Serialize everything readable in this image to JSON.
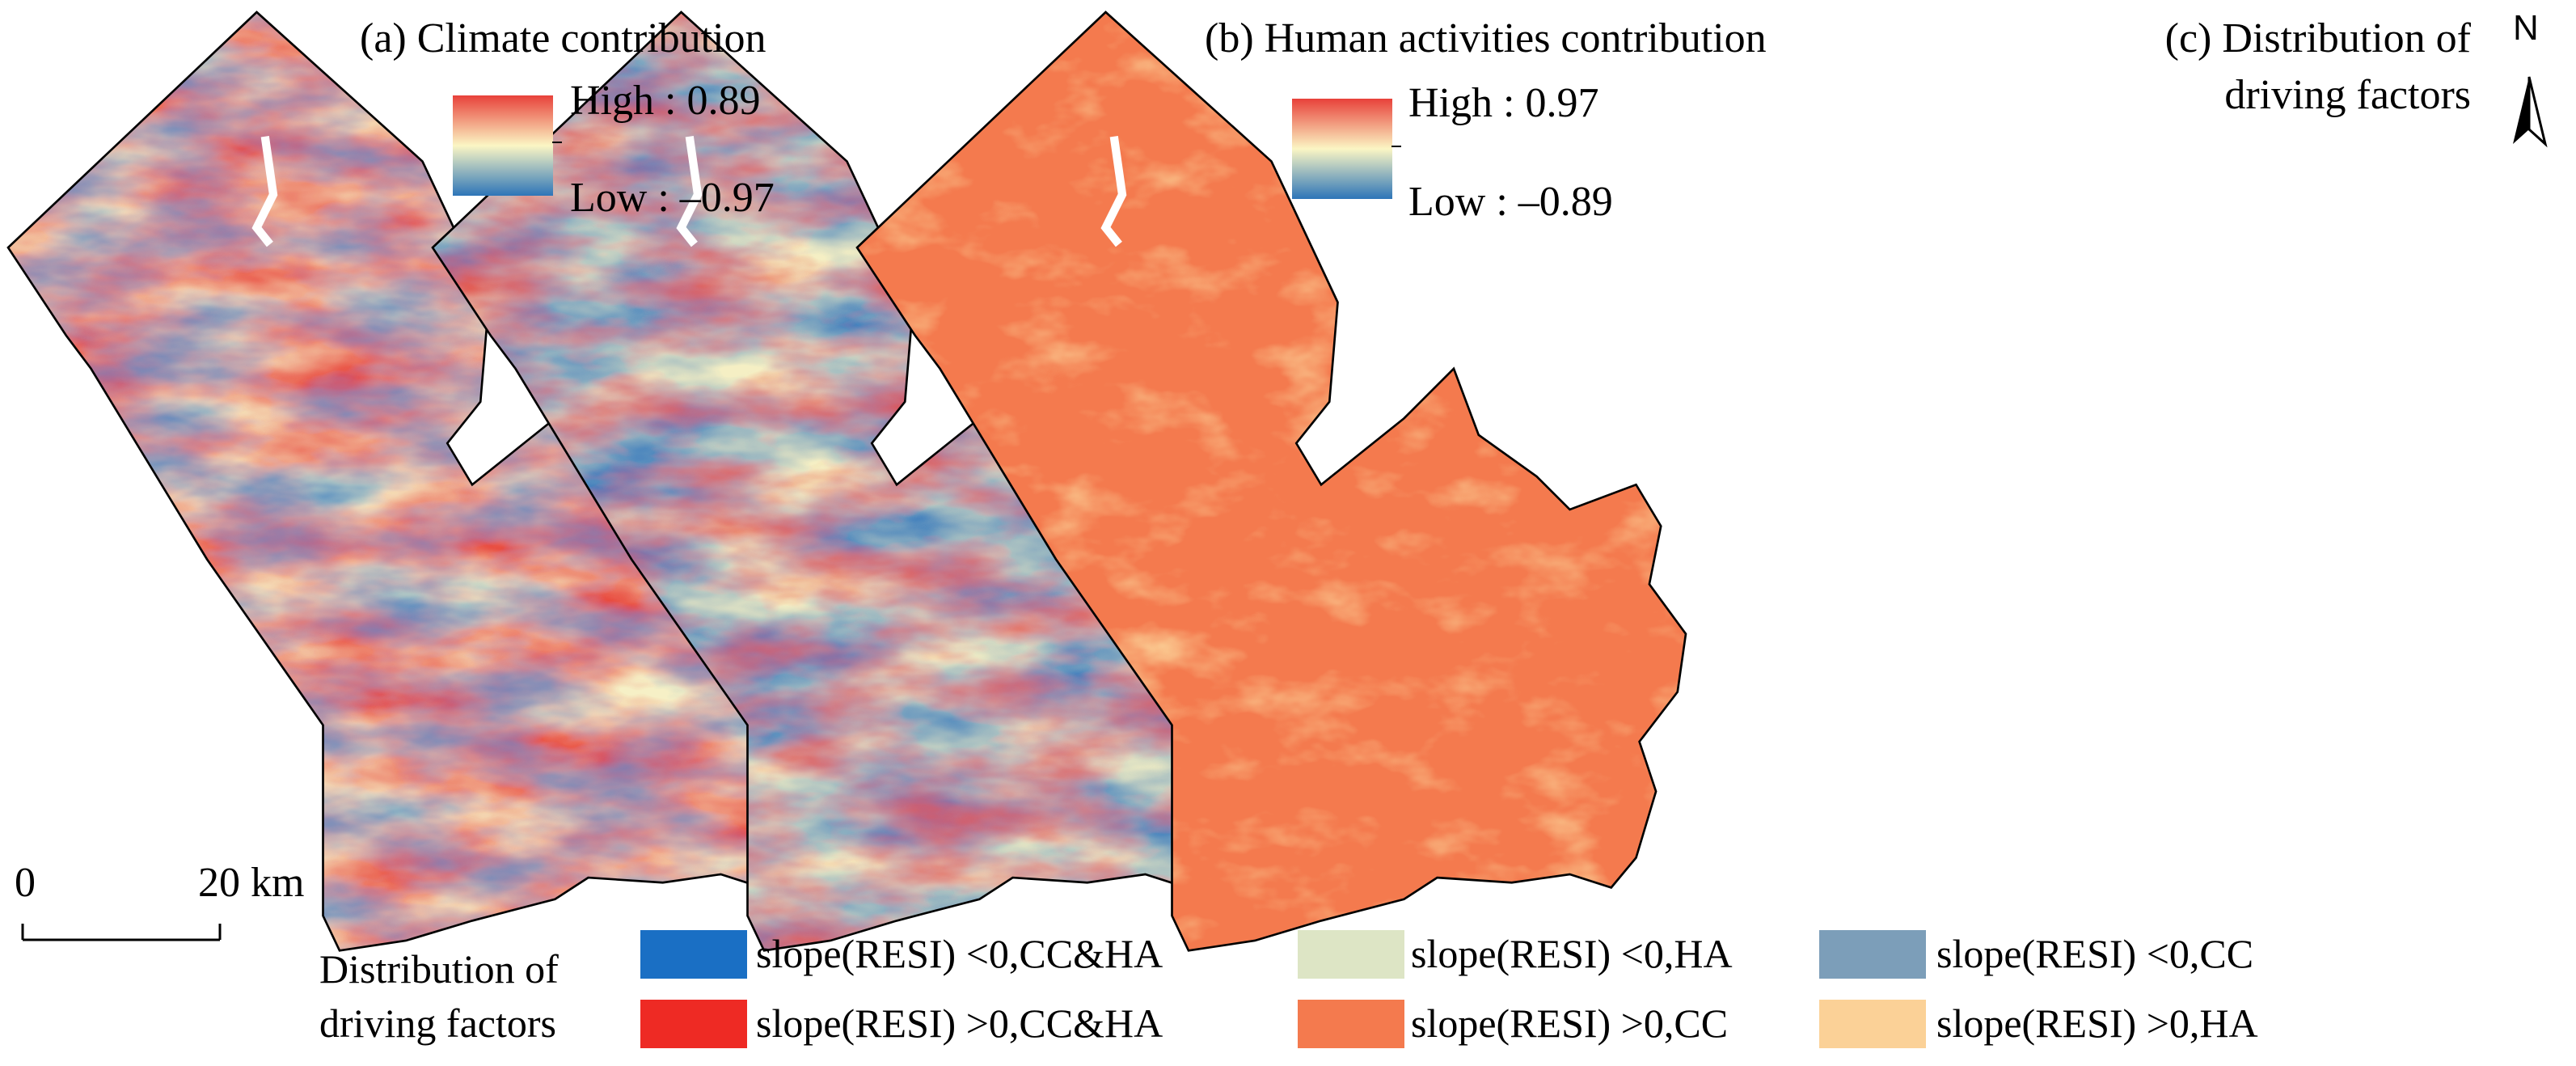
{
  "panels": [
    {
      "title": "(a) Climate contribution",
      "high_label": "High : 0.89",
      "low_label": "Low : –0.97"
    },
    {
      "title": "(b) Human activities contribution",
      "high_label": "High : 0.97",
      "low_label": "Low : –0.89"
    },
    {
      "title_line1": "(c) Distribution of",
      "title_line2": "driving factors"
    }
  ],
  "north_arrow": {
    "label": "N"
  },
  "scale_bar": {
    "start_label": "0",
    "end_label": "20 km"
  },
  "legend": {
    "title_line1": "Distribution of",
    "title_line2": "driving factors",
    "items": [
      {
        "label": "slope(RESI)  <0,CC&HA",
        "color": "#1a6fc4"
      },
      {
        "label": "slope(RESI) <0,HA",
        "color": "#dde5c5"
      },
      {
        "label": "slope(RESI) <0,CC",
        "color": "#7c9eb9"
      },
      {
        "label": "slope(RESI)  >0,CC&HA",
        "color": "#ee2a24"
      },
      {
        "label": "slope(RESI) >0,CC",
        "color": "#f47a4e"
      },
      {
        "label": "slope(RESI) >0,HA",
        "color": "#fbd197"
      }
    ]
  },
  "colors": {
    "ramp_high": "#e8413a",
    "ramp_mid": "#fbf6c4",
    "ramp_low": "#2d75b8",
    "map_c_base": "#f47a4e",
    "map_c_patch": "#fbd197"
  }
}
